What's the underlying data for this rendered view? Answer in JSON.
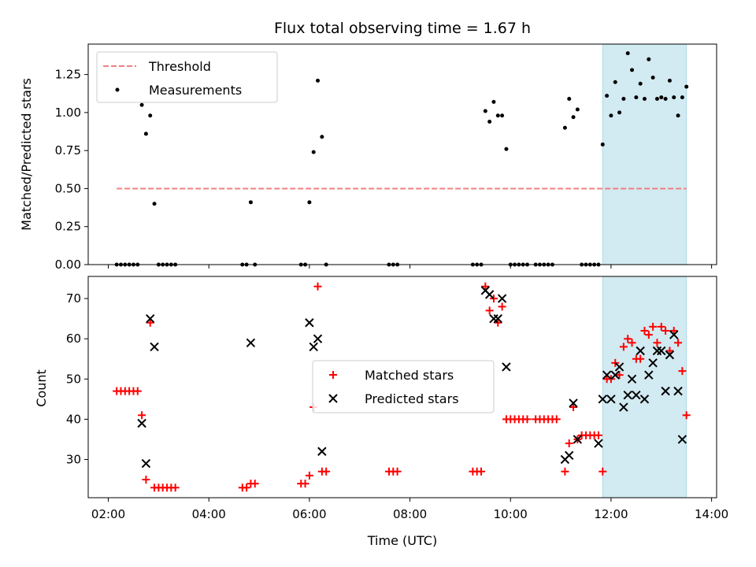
{
  "chart_data": [
    {
      "type": "scatter",
      "panel": "top",
      "title": "Flux total observing time = 1.67 h",
      "xlabel": "",
      "ylabel": "Matched/Predicted stars",
      "ylim": [
        0,
        1.45
      ],
      "xlim": [
        "01:36",
        "14:06"
      ],
      "yticks": [
        "0.00",
        "0.25",
        "0.50",
        "0.75",
        "1.00",
        "1.25"
      ],
      "legend_position": "top-left",
      "threshold": {
        "name": "Threshold",
        "value": 0.5,
        "x_start": "02:10",
        "x_end": "13:30",
        "color": "#f08080"
      },
      "shaded_region": {
        "x_start": "11:50",
        "x_end": "13:30",
        "color": "#add8e6"
      },
      "series": [
        {
          "name": "Measurements",
          "color": "#000000",
          "points": [
            [
              "02:10",
              0
            ],
            [
              "02:15",
              0
            ],
            [
              "02:20",
              0
            ],
            [
              "02:25",
              0
            ],
            [
              "02:30",
              0
            ],
            [
              "02:35",
              0
            ],
            [
              "02:40",
              1.05
            ],
            [
              "02:45",
              0.86
            ],
            [
              "02:50",
              0.98
            ],
            [
              "02:55",
              0.4
            ],
            [
              "03:00",
              0
            ],
            [
              "03:05",
              0
            ],
            [
              "03:10",
              0
            ],
            [
              "03:15",
              0
            ],
            [
              "03:20",
              0
            ],
            [
              "04:40",
              0
            ],
            [
              "04:45",
              0
            ],
            [
              "04:50",
              0.41
            ],
            [
              "04:55",
              0
            ],
            [
              "05:50",
              0
            ],
            [
              "05:55",
              0
            ],
            [
              "06:00",
              0.41
            ],
            [
              "06:05",
              0.74
            ],
            [
              "06:10",
              1.21
            ],
            [
              "06:15",
              0.84
            ],
            [
              "06:20",
              0
            ],
            [
              "07:35",
              0
            ],
            [
              "07:40",
              0
            ],
            [
              "07:45",
              0
            ],
            [
              "09:15",
              0
            ],
            [
              "09:20",
              0
            ],
            [
              "09:25",
              0
            ],
            [
              "09:30",
              1.01
            ],
            [
              "09:35",
              0.94
            ],
            [
              "09:40",
              1.07
            ],
            [
              "09:45",
              0.98
            ],
            [
              "09:50",
              0.98
            ],
            [
              "09:55",
              0.76
            ],
            [
              "10:00",
              0
            ],
            [
              "10:05",
              0
            ],
            [
              "10:10",
              0
            ],
            [
              "10:15",
              0
            ],
            [
              "10:20",
              0
            ],
            [
              "10:30",
              0
            ],
            [
              "10:35",
              0
            ],
            [
              "10:40",
              0
            ],
            [
              "10:45",
              0
            ],
            [
              "10:50",
              0
            ],
            [
              "11:05",
              0.9
            ],
            [
              "11:10",
              1.09
            ],
            [
              "11:15",
              0.97
            ],
            [
              "11:20",
              1.02
            ],
            [
              "11:25",
              0
            ],
            [
              "11:30",
              0
            ],
            [
              "11:35",
              0
            ],
            [
              "11:40",
              0
            ],
            [
              "11:45",
              0
            ],
            [
              "11:50",
              0.79
            ],
            [
              "11:55",
              1.11
            ],
            [
              "12:00",
              0.98
            ],
            [
              "12:05",
              1.2
            ],
            [
              "12:10",
              1.0
            ],
            [
              "12:15",
              1.09
            ],
            [
              "12:20",
              1.39
            ],
            [
              "12:25",
              1.28
            ],
            [
              "12:30",
              1.1
            ],
            [
              "12:35",
              1.19
            ],
            [
              "12:40",
              1.09
            ],
            [
              "12:45",
              1.35
            ],
            [
              "12:50",
              1.23
            ],
            [
              "12:55",
              1.09
            ],
            [
              "13:00",
              1.1
            ],
            [
              "13:05",
              1.09
            ],
            [
              "13:10",
              1.21
            ],
            [
              "13:15",
              1.1
            ],
            [
              "13:20",
              0.98
            ],
            [
              "13:25",
              1.1
            ],
            [
              "13:30",
              1.17
            ]
          ]
        }
      ]
    },
    {
      "type": "scatter",
      "panel": "bottom",
      "xlabel": "Time (UTC)",
      "ylabel": "Count",
      "ylim": [
        20.5,
        75.5
      ],
      "xlim": [
        "01:36",
        "14:06"
      ],
      "xticks": [
        "02:00",
        "04:00",
        "06:00",
        "08:00",
        "10:00",
        "12:00",
        "14:00"
      ],
      "yticks": [
        "30",
        "40",
        "50",
        "60",
        "70"
      ],
      "legend_position": "center",
      "shaded_region": {
        "x_start": "11:50",
        "x_end": "13:30",
        "color": "#add8e6"
      },
      "series": [
        {
          "name": "Matched stars",
          "marker": "plus",
          "color": "#ff0000",
          "points": [
            [
              "02:10",
              47
            ],
            [
              "02:15",
              47
            ],
            [
              "02:20",
              47
            ],
            [
              "02:25",
              47
            ],
            [
              "02:30",
              47
            ],
            [
              "02:35",
              47
            ],
            [
              "02:40",
              41
            ],
            [
              "02:45",
              25
            ],
            [
              "02:50",
              64
            ],
            [
              "02:55",
              23
            ],
            [
              "03:00",
              23
            ],
            [
              "03:05",
              23
            ],
            [
              "03:10",
              23
            ],
            [
              "03:15",
              23
            ],
            [
              "03:20",
              23
            ],
            [
              "04:40",
              23
            ],
            [
              "04:45",
              23
            ],
            [
              "04:50",
              24
            ],
            [
              "04:55",
              24
            ],
            [
              "05:50",
              24
            ],
            [
              "05:55",
              24
            ],
            [
              "06:00",
              26
            ],
            [
              "06:05",
              43
            ],
            [
              "06:10",
              73
            ],
            [
              "06:15",
              27
            ],
            [
              "06:20",
              27
            ],
            [
              "07:35",
              27
            ],
            [
              "07:40",
              27
            ],
            [
              "07:45",
              27
            ],
            [
              "09:15",
              27
            ],
            [
              "09:20",
              27
            ],
            [
              "09:25",
              27
            ],
            [
              "09:30",
              73
            ],
            [
              "09:35",
              67
            ],
            [
              "09:40",
              70
            ],
            [
              "09:45",
              64
            ],
            [
              "09:50",
              68
            ],
            [
              "09:55",
              40
            ],
            [
              "10:00",
              40
            ],
            [
              "10:05",
              40
            ],
            [
              "10:10",
              40
            ],
            [
              "10:15",
              40
            ],
            [
              "10:20",
              40
            ],
            [
              "10:30",
              40
            ],
            [
              "10:35",
              40
            ],
            [
              "10:40",
              40
            ],
            [
              "10:45",
              40
            ],
            [
              "10:50",
              40
            ],
            [
              "10:55",
              40
            ],
            [
              "11:05",
              27
            ],
            [
              "11:10",
              34
            ],
            [
              "11:15",
              43
            ],
            [
              "11:20",
              35
            ],
            [
              "11:25",
              36
            ],
            [
              "11:30",
              36
            ],
            [
              "11:35",
              36
            ],
            [
              "11:40",
              36
            ],
            [
              "11:45",
              36
            ],
            [
              "11:50",
              27
            ],
            [
              "11:55",
              50
            ],
            [
              "12:00",
              50
            ],
            [
              "12:05",
              54
            ],
            [
              "12:10",
              51
            ],
            [
              "12:15",
              58
            ],
            [
              "12:20",
              60
            ],
            [
              "12:25",
              59
            ],
            [
              "12:30",
              55
            ],
            [
              "12:35",
              55
            ],
            [
              "12:40",
              62
            ],
            [
              "12:45",
              61
            ],
            [
              "12:50",
              63
            ],
            [
              "12:55",
              59
            ],
            [
              "13:00",
              63
            ],
            [
              "13:05",
              62
            ],
            [
              "13:10",
              57
            ],
            [
              "13:15",
              62
            ],
            [
              "13:20",
              59
            ],
            [
              "13:25",
              52
            ],
            [
              "13:30",
              41
            ]
          ]
        },
        {
          "name": "Predicted stars",
          "marker": "x",
          "color": "#000000",
          "points": [
            [
              "02:40",
              39
            ],
            [
              "02:45",
              29
            ],
            [
              "02:50",
              65
            ],
            [
              "02:55",
              58
            ],
            [
              "04:50",
              59
            ],
            [
              "06:00",
              64
            ],
            [
              "06:05",
              58
            ],
            [
              "06:10",
              60
            ],
            [
              "06:15",
              32
            ],
            [
              "09:30",
              72
            ],
            [
              "09:35",
              71
            ],
            [
              "09:40",
              65
            ],
            [
              "09:45",
              65
            ],
            [
              "09:50",
              70
            ],
            [
              "09:55",
              53
            ],
            [
              "11:05",
              30
            ],
            [
              "11:10",
              31
            ],
            [
              "11:15",
              44
            ],
            [
              "11:20",
              35
            ],
            [
              "11:45",
              34
            ],
            [
              "11:50",
              45
            ],
            [
              "11:55",
              51
            ],
            [
              "12:00",
              45
            ],
            [
              "12:05",
              51
            ],
            [
              "12:10",
              53
            ],
            [
              "12:15",
              43
            ],
            [
              "12:20",
              46
            ],
            [
              "12:25",
              50
            ],
            [
              "12:30",
              46
            ],
            [
              "12:35",
              57
            ],
            [
              "12:40",
              45
            ],
            [
              "12:45",
              51
            ],
            [
              "12:50",
              54
            ],
            [
              "12:55",
              57
            ],
            [
              "13:00",
              57
            ],
            [
              "13:05",
              47
            ],
            [
              "13:10",
              56
            ],
            [
              "13:15",
              61
            ],
            [
              "13:20",
              47
            ],
            [
              "13:25",
              35
            ]
          ]
        }
      ]
    }
  ]
}
